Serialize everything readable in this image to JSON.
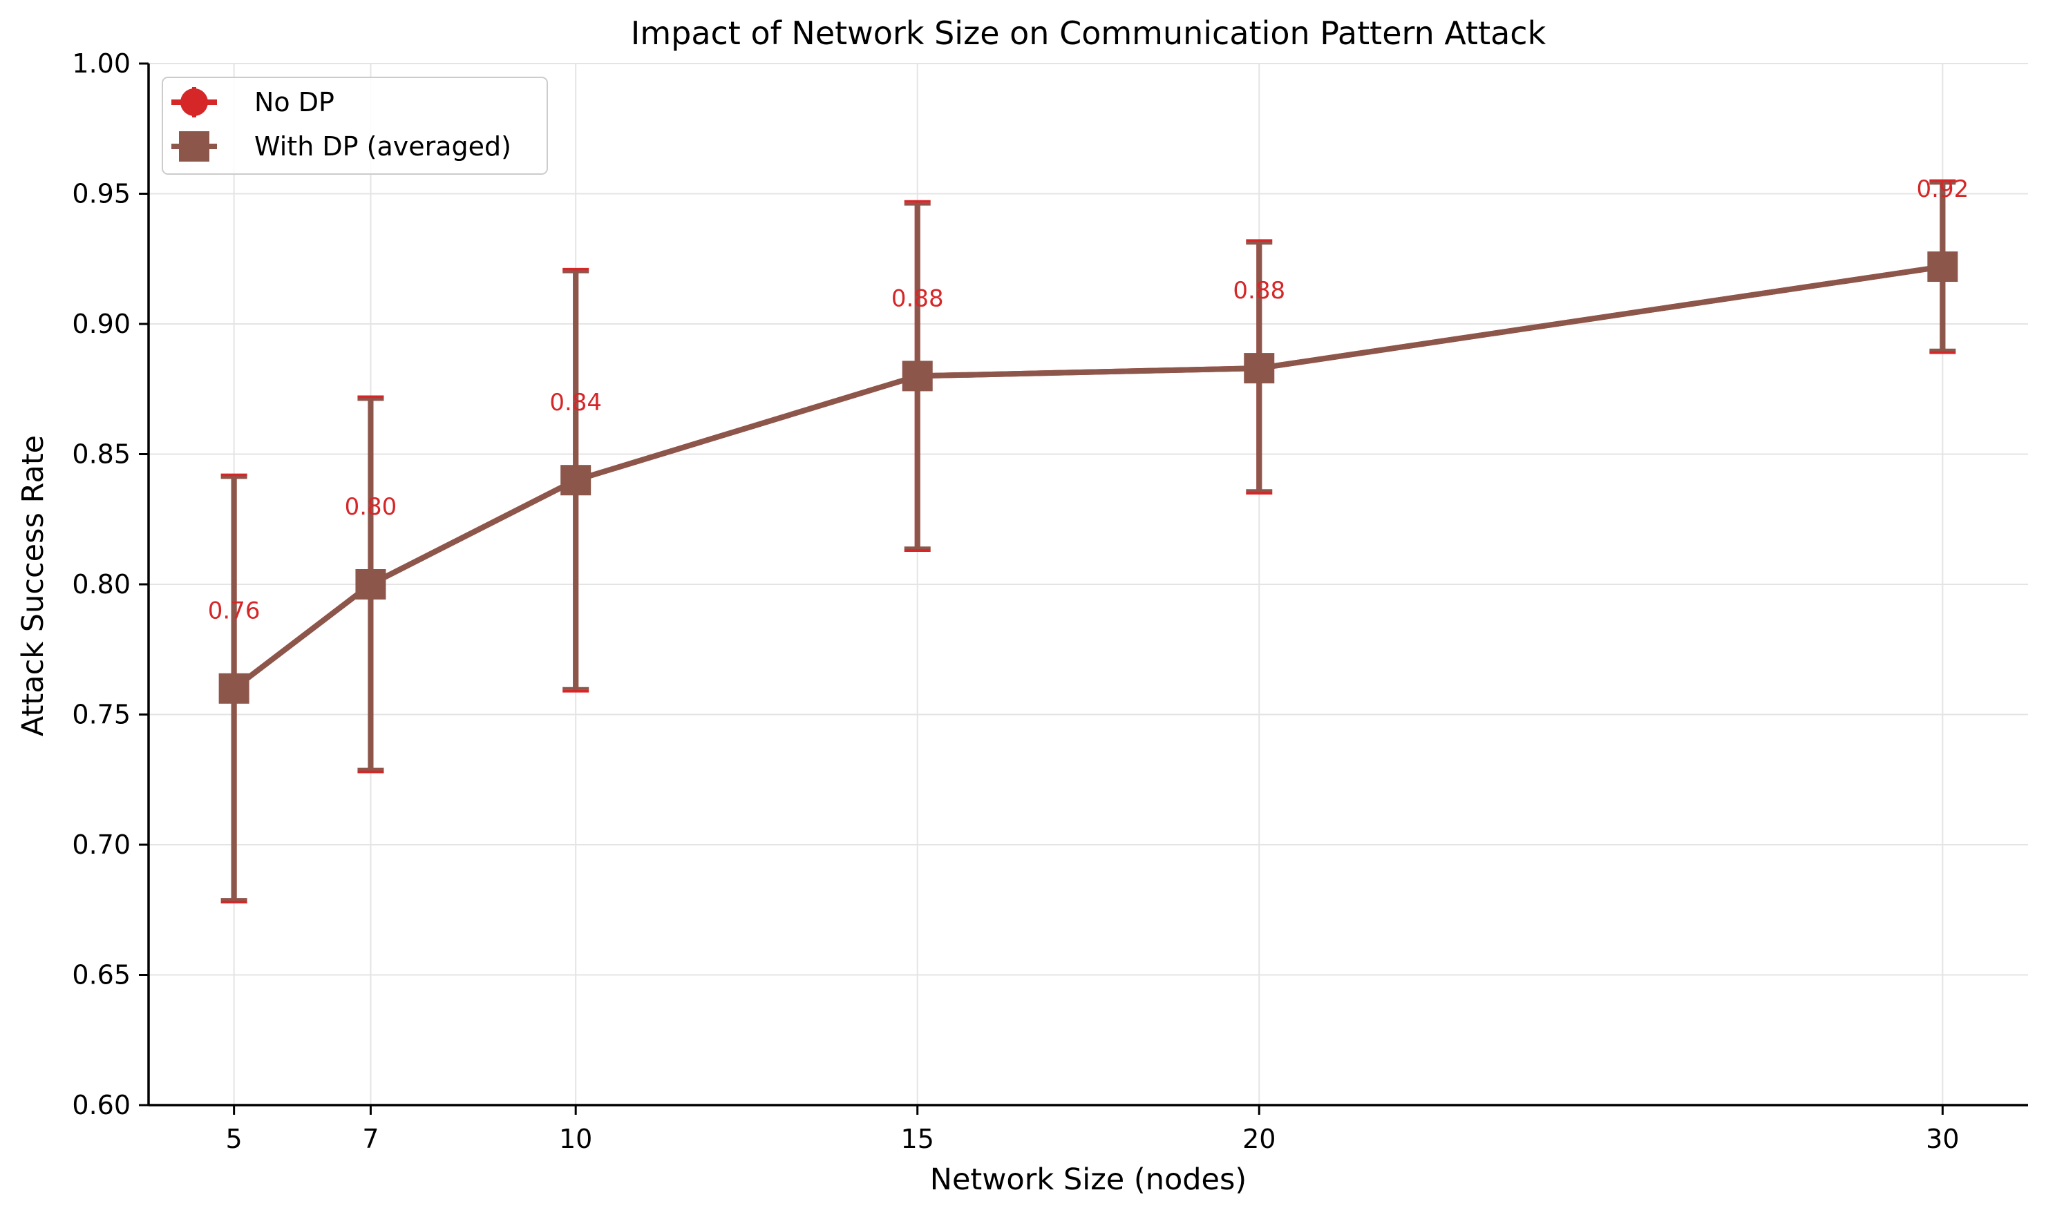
{
  "chart_data": {
    "type": "line",
    "title": "Impact of Network Size on Communication Pattern Attack",
    "xlabel": "Network Size (nodes)",
    "ylabel": "Attack Success Rate",
    "x": [
      5,
      7,
      10,
      15,
      20,
      30
    ],
    "x_ticks": [
      "5",
      "7",
      "10",
      "15",
      "20",
      "30"
    ],
    "xlim": [
      3.75,
      31.25
    ],
    "ylim": [
      0.6,
      1.0
    ],
    "y_ticks": [
      "0.60",
      "0.65",
      "0.70",
      "0.75",
      "0.80",
      "0.85",
      "0.90",
      "0.95",
      "1.00"
    ],
    "grid": true,
    "legend_position": "top-left",
    "series": [
      {
        "name": "No DP",
        "color": "#d62728",
        "marker": "circle",
        "values": [
          0.76,
          0.8,
          0.84,
          0.88,
          0.883,
          0.922
        ],
        "error_low": [
          0.678,
          0.728,
          0.759,
          0.813,
          0.835,
          0.889
        ],
        "error_high": [
          0.842,
          0.872,
          0.921,
          0.947,
          0.932,
          0.955
        ]
      },
      {
        "name": "With DP (averaged)",
        "color": "#8c564b",
        "marker": "square",
        "values": [
          0.76,
          0.8,
          0.84,
          0.88,
          0.883,
          0.922
        ],
        "error_low": [
          0.679,
          0.729,
          0.76,
          0.814,
          0.836,
          0.89
        ],
        "error_high": [
          0.841,
          0.871,
          0.92,
          0.946,
          0.931,
          0.954
        ]
      }
    ],
    "annotations": [
      "0.76",
      "0.80",
      "0.84",
      "0.88",
      "0.88",
      "0.92"
    ],
    "annotation_color": "#d62728"
  }
}
